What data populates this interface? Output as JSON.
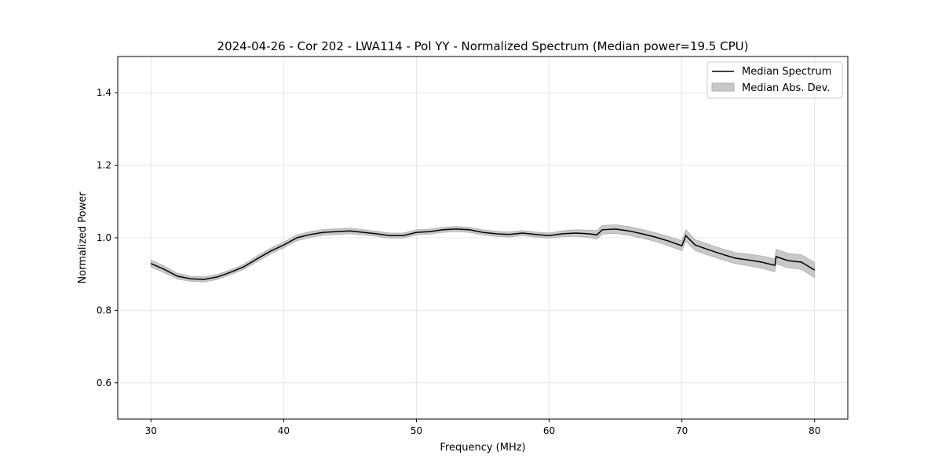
{
  "chart_data": {
    "type": "line",
    "title": "2024-04-26 - Cor 202 - LWA114 - Pol YY - Normalized Spectrum (Median power=19.5 CPU)",
    "xlabel": "Frequency (MHz)",
    "ylabel": "Normalized Power",
    "xlim": [
      27.5,
      82.5
    ],
    "ylim": [
      0.5,
      1.5
    ],
    "xticks": [
      30,
      40,
      50,
      60,
      70,
      80
    ],
    "yticks": [
      0.6,
      0.8,
      1.0,
      1.2,
      1.4
    ],
    "ytick_labels": [
      "0.6",
      "0.8",
      "1.0",
      "1.2",
      "1.4"
    ],
    "grid": true,
    "legend_position": "top-right",
    "legend": [
      "Median Spectrum",
      "Median Abs. Dev."
    ],
    "colors": {
      "line": "#000000",
      "band": "#c8c8c8",
      "band_edge": "#b0b0b0",
      "grid": "#e0e0e0"
    },
    "x": [
      30,
      31,
      32,
      33,
      34,
      35,
      36,
      37,
      38,
      39,
      40,
      41,
      42,
      43,
      44,
      45,
      46,
      47,
      48,
      49,
      50,
      51,
      52,
      53,
      54,
      55,
      56,
      57,
      58,
      59,
      60,
      61,
      62,
      63,
      63.6,
      64,
      65,
      66,
      67,
      68,
      69,
      70,
      70.3,
      71,
      72,
      73,
      74,
      75,
      76,
      77,
      77.1,
      78,
      79,
      80
    ],
    "median": [
      0.929,
      0.913,
      0.894,
      0.887,
      0.885,
      0.892,
      0.905,
      0.92,
      0.942,
      0.963,
      0.98,
      1.0,
      1.009,
      1.015,
      1.017,
      1.019,
      1.015,
      1.011,
      1.006,
      1.006,
      1.015,
      1.017,
      1.022,
      1.024,
      1.022,
      1.015,
      1.011,
      1.009,
      1.013,
      1.009,
      1.006,
      1.011,
      1.013,
      1.011,
      1.008,
      1.022,
      1.024,
      1.019,
      1.011,
      1.002,
      0.991,
      0.978,
      1.006,
      0.98,
      0.967,
      0.955,
      0.944,
      0.939,
      0.933,
      0.924,
      0.948,
      0.937,
      0.933,
      0.911
    ],
    "mad": [
      0.01,
      0.009,
      0.008,
      0.007,
      0.007,
      0.007,
      0.007,
      0.007,
      0.008,
      0.008,
      0.008,
      0.008,
      0.008,
      0.008,
      0.008,
      0.008,
      0.007,
      0.007,
      0.007,
      0.007,
      0.007,
      0.007,
      0.007,
      0.007,
      0.007,
      0.007,
      0.007,
      0.007,
      0.007,
      0.007,
      0.007,
      0.008,
      0.009,
      0.01,
      0.012,
      0.012,
      0.012,
      0.012,
      0.012,
      0.012,
      0.013,
      0.014,
      0.016,
      0.015,
      0.015,
      0.015,
      0.015,
      0.016,
      0.017,
      0.018,
      0.02,
      0.02,
      0.02,
      0.021
    ]
  }
}
